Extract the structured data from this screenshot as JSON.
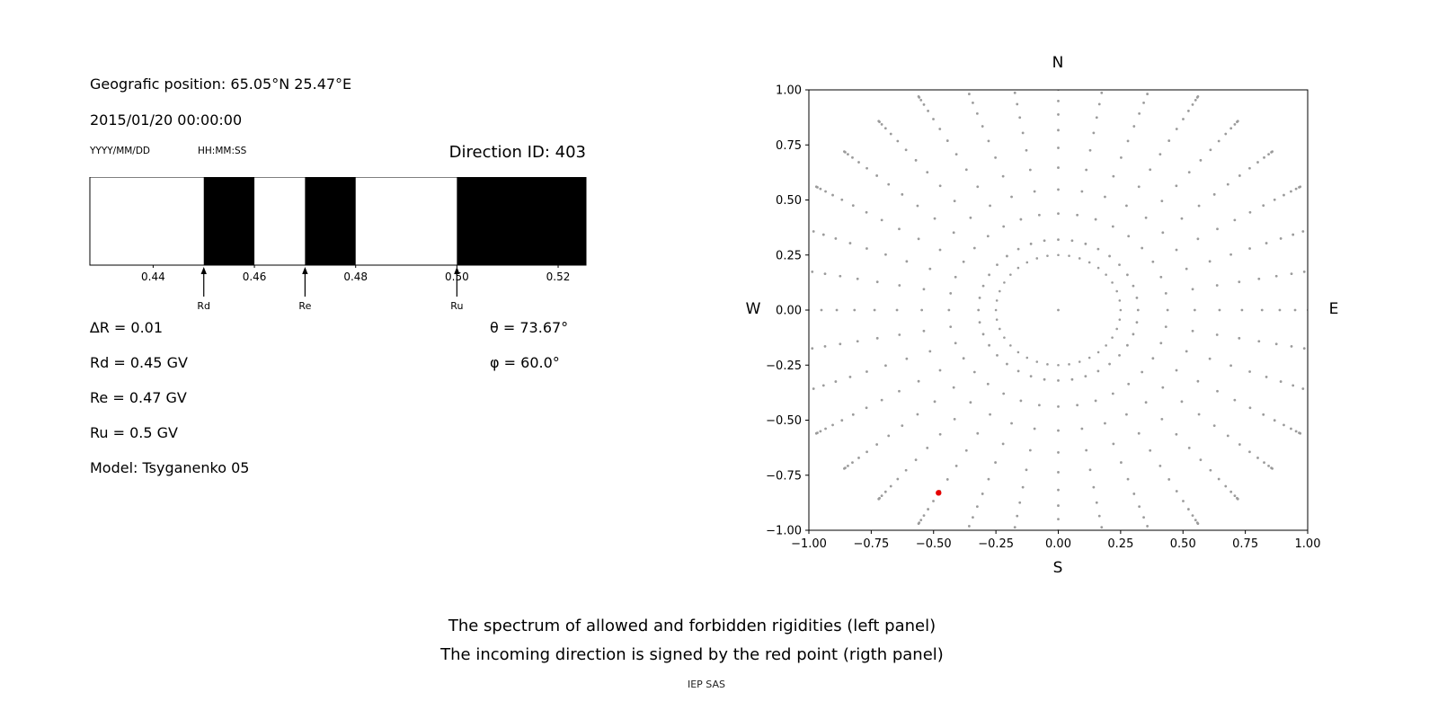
{
  "left_panel": {
    "geo_position": "Geografic position: 65.05°N 25.47°E",
    "datetime": "2015/01/20 00:00:00",
    "date_format_label": "YYYY/MM/DD",
    "time_format_label": "HH:MM:SS",
    "direction_id": "Direction ID: 403",
    "params": {
      "delta_r": "∆R = 0.01",
      "rd": "Rd = 0.45 GV",
      "re": "Re = 0.47 GV",
      "ru": "Ru = 0.5 GV",
      "model": "Model: Tsyganenko 05",
      "theta": "θ = 73.67°",
      "phi": "φ = 60.0°"
    }
  },
  "caption": {
    "line1": "The spectrum of allowed and forbidden rigidities (left panel)",
    "line2": "The incoming direction is signed by the red point (rigth panel)",
    "credit": "IEP SAS"
  },
  "chart_data": [
    {
      "type": "bar",
      "name": "rigidity-spectrum",
      "description": "Allowed (white) and forbidden (black) rigidity bands in GV",
      "xlim": [
        0.4275,
        0.5255
      ],
      "xticks": [
        0.44,
        0.46,
        0.48,
        0.5,
        0.52
      ],
      "xtick_labels": [
        "0.44",
        "0.46",
        "0.48",
        "0.50",
        "0.52"
      ],
      "forbidden_bands": [
        [
          0.45,
          0.46
        ],
        [
          0.47,
          0.48
        ],
        [
          0.5,
          0.5255
        ]
      ],
      "allowed_color": "#ffffff",
      "forbidden_color": "#000000",
      "markers": [
        {
          "label": "Rd",
          "x": 0.45
        },
        {
          "label": "Re",
          "x": 0.47
        },
        {
          "label": "Ru",
          "x": 0.5
        }
      ]
    },
    {
      "type": "scatter",
      "name": "incoming-direction-map",
      "description": "Direction grid of gray dots (radial rays plus inner circle); red point marks the incoming direction",
      "xlim": [
        -1,
        1
      ],
      "ylim": [
        -1,
        1
      ],
      "xticks": [
        -1,
        -0.75,
        -0.5,
        -0.25,
        0,
        0.25,
        0.5,
        0.75,
        1
      ],
      "xtick_labels": [
        "−1.00",
        "−0.75",
        "−0.50",
        "−0.25",
        "0.00",
        "0.25",
        "0.50",
        "0.75",
        "1.00"
      ],
      "yticks": [
        1,
        0.75,
        0.5,
        0.25,
        0,
        -0.25,
        -0.5,
        -0.75,
        -1
      ],
      "ytick_labels": [
        "1.00",
        "0.75",
        "0.50",
        "0.25",
        "0.00",
        "−0.25",
        "−0.50",
        "−0.75",
        "−1.00"
      ],
      "direction_labels": {
        "north": "N",
        "south": "S",
        "east": "E",
        "west": "W"
      },
      "dot_color": "#9b9b9b",
      "rays": {
        "count": 36,
        "angle_start_deg": 0,
        "r_start": 0.32,
        "r_end": 1.12,
        "points_per_ray": 14
      },
      "inner_circle": {
        "radius": 0.25,
        "points": 36
      },
      "center_dot": true,
      "red_point": {
        "x": -0.48,
        "y": -0.83,
        "color": "#e60000"
      }
    }
  ]
}
